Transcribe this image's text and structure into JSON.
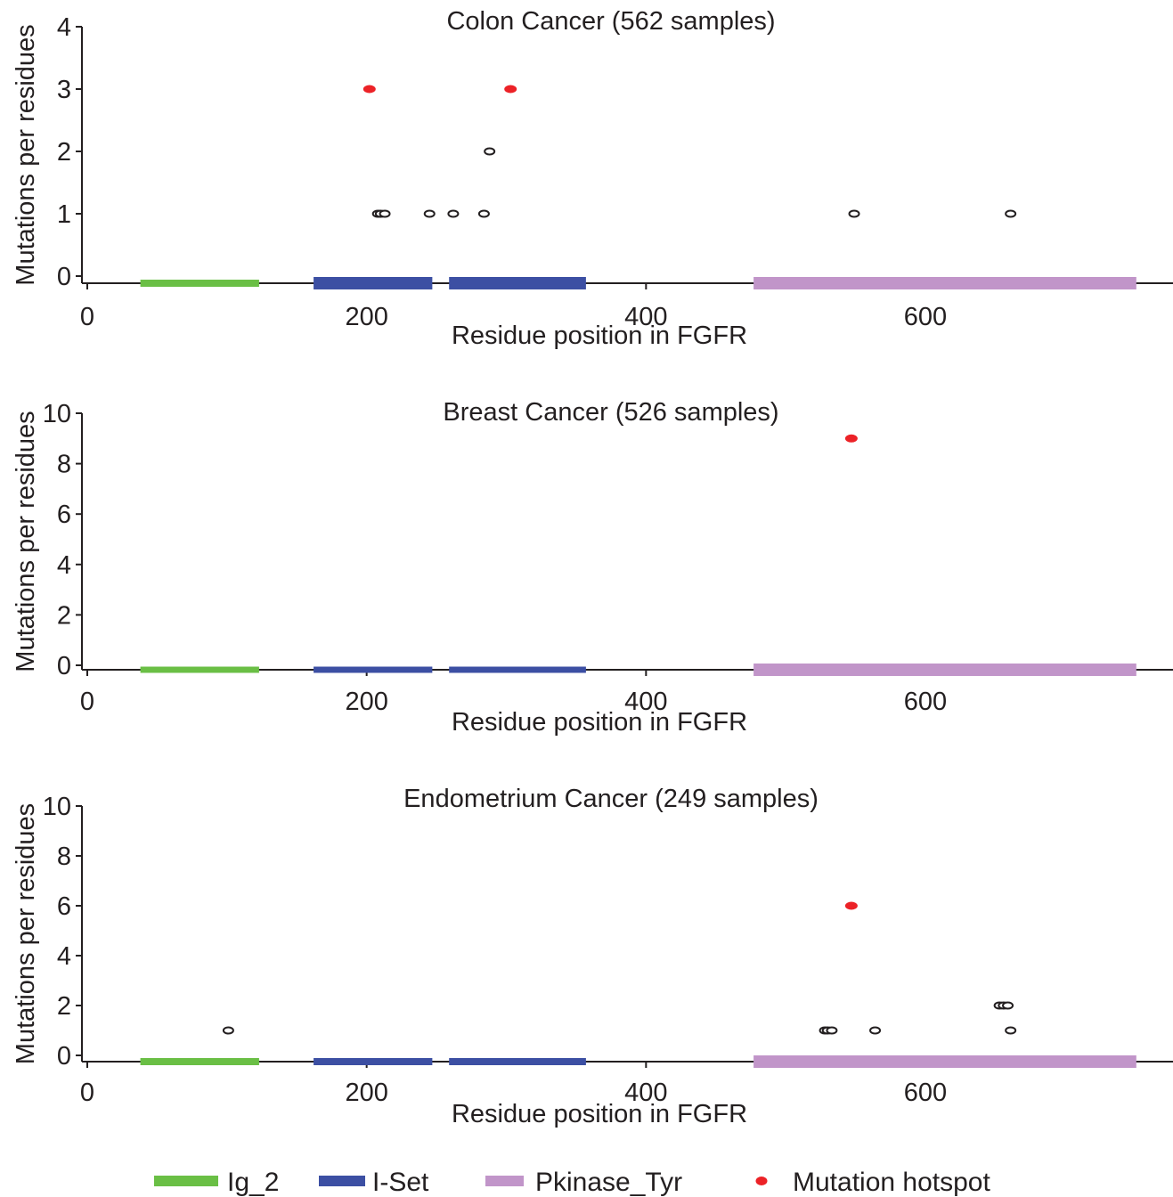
{
  "chart_data": [
    {
      "type": "scatter",
      "title": "Colon Cancer (562 samples)",
      "xlabel": "Residue position in FGFR",
      "ylabel": "Mutations per residues",
      "xlim": [
        0,
        775
      ],
      "ylim": [
        0,
        4
      ],
      "xticks": [
        0,
        200,
        400,
        600
      ],
      "yticks": [
        0,
        1,
        2,
        3,
        4
      ],
      "grid": false,
      "points": [
        {
          "x": 208,
          "y": 1
        },
        {
          "x": 210,
          "y": 1
        },
        {
          "x": 213,
          "y": 1
        },
        {
          "x": 245,
          "y": 1
        },
        {
          "x": 262,
          "y": 1
        },
        {
          "x": 284,
          "y": 1
        },
        {
          "x": 288,
          "y": 2
        },
        {
          "x": 549,
          "y": 1
        },
        {
          "x": 661,
          "y": 1
        }
      ],
      "hotspots": [
        {
          "x": 202,
          "y": 3
        },
        {
          "x": 303,
          "y": 3
        }
      ]
    },
    {
      "type": "scatter",
      "title": "Breast Cancer (526 samples)",
      "xlabel": "Residue position in FGFR",
      "ylabel": "Mutations per residues",
      "xlim": [
        0,
        775
      ],
      "ylim": [
        0,
        10
      ],
      "xticks": [
        0,
        200,
        400,
        600
      ],
      "yticks": [
        0,
        2,
        4,
        6,
        8,
        10
      ],
      "grid": false,
      "points": [],
      "hotspots": [
        {
          "x": 547,
          "y": 9
        }
      ]
    },
    {
      "type": "scatter",
      "title": "Endometrium Cancer (249 samples)",
      "xlabel": "Residue position in FGFR",
      "ylabel": "Mutations per residues",
      "xlim": [
        0,
        775
      ],
      "ylim": [
        0,
        10
      ],
      "xticks": [
        0,
        200,
        400,
        600
      ],
      "yticks": [
        0,
        2,
        4,
        6,
        8,
        10
      ],
      "grid": false,
      "points": [
        {
          "x": 101,
          "y": 1
        },
        {
          "x": 528,
          "y": 1
        },
        {
          "x": 530,
          "y": 1
        },
        {
          "x": 533,
          "y": 1
        },
        {
          "x": 564,
          "y": 1
        },
        {
          "x": 653,
          "y": 2
        },
        {
          "x": 656,
          "y": 2
        },
        {
          "x": 659,
          "y": 2
        },
        {
          "x": 661,
          "y": 1
        }
      ],
      "hotspots": [
        {
          "x": 547,
          "y": 6
        }
      ]
    }
  ],
  "domains": [
    {
      "name": "Ig_2",
      "start": 38,
      "end": 123,
      "color": "#6abf45"
    },
    {
      "name": "I-Set",
      "start": 162,
      "end": 247,
      "color": "#3c4fa3"
    },
    {
      "name": "I-Set",
      "start": 259,
      "end": 357,
      "color": "#3c4fa3"
    },
    {
      "name": "Pkinase_Tyr",
      "start": 477,
      "end": 751,
      "color": "#c195c9"
    }
  ],
  "legend": {
    "position": "bottom",
    "items": [
      {
        "label": "Ig_2",
        "kind": "bar",
        "color": "#6abf45"
      },
      {
        "label": "I-Set",
        "kind": "bar",
        "color": "#3c4fa3"
      },
      {
        "label": "Pkinase_Tyr",
        "kind": "bar",
        "color": "#c195c9"
      },
      {
        "label": "Mutation hotspot",
        "kind": "dot",
        "color": "#ec2227"
      }
    ]
  },
  "colors": {
    "hotspot": "#ec2227",
    "mutation_marker": "#231f20",
    "axis": "#231f20"
  }
}
